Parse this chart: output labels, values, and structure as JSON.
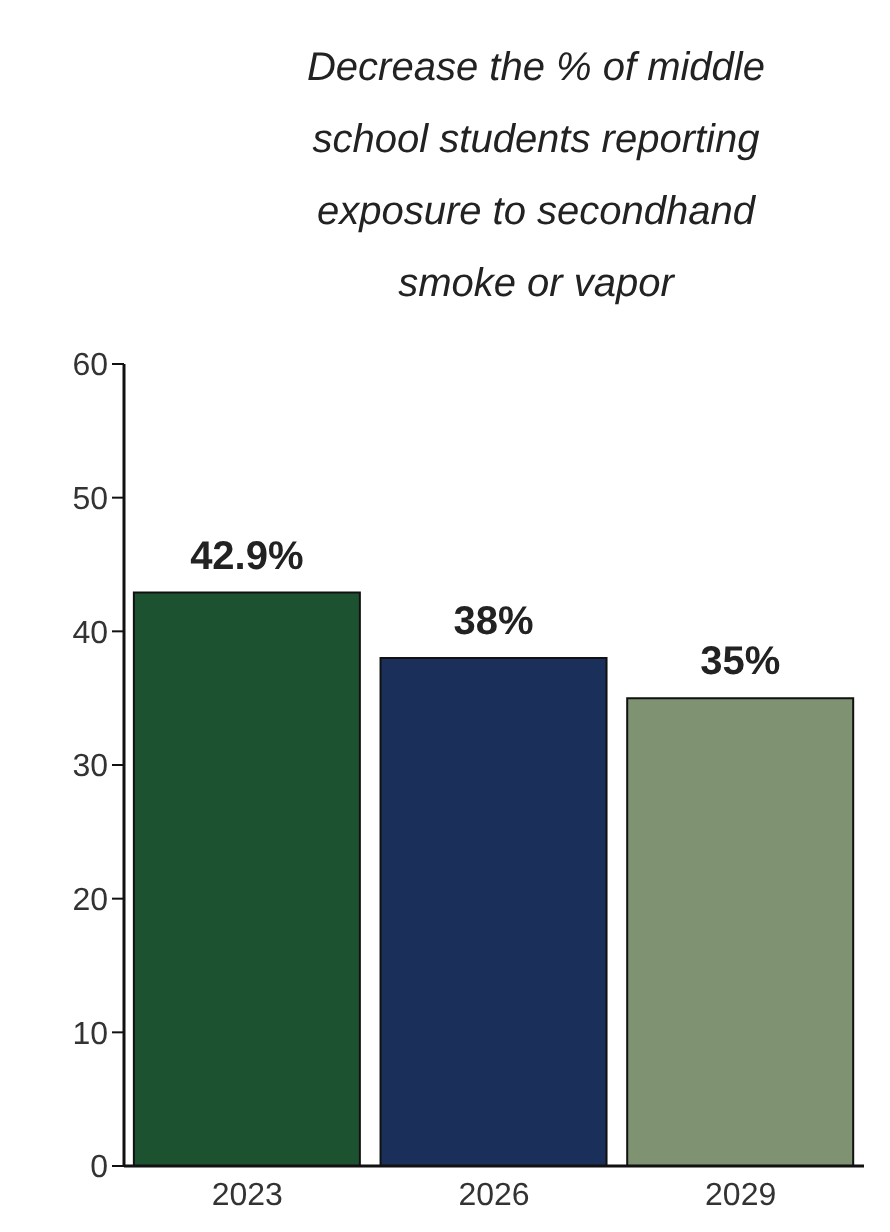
{
  "chart_data": {
    "type": "bar",
    "title": "Decrease the % of middle school students reporting exposure to secondhand smoke or vapor",
    "categories": [
      "2023",
      "2026",
      "2029"
    ],
    "values": [
      42.9,
      38,
      35
    ],
    "colors": [
      "#1c5230",
      "#1a2f5a",
      "#7f9373"
    ],
    "value_labels": [
      "42.9%",
      "38%",
      "35%"
    ],
    "ylim": [
      0,
      60
    ],
    "yticks": [
      0,
      10,
      20,
      30,
      40,
      50,
      60
    ],
    "grid": false,
    "legend": false
  }
}
